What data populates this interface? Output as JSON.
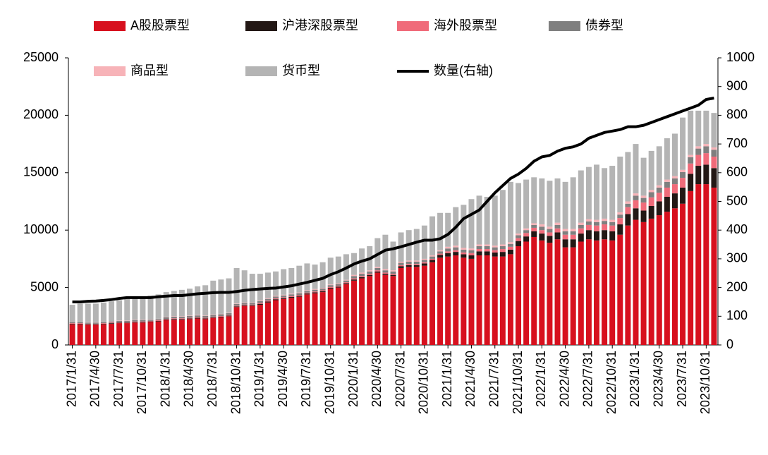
{
  "chart_data": {
    "type": "stacked_bar_line",
    "categories": [
      "2017/1/31",
      null,
      null,
      "2017/4/30",
      null,
      null,
      "2017/7/31",
      null,
      null,
      "2017/10/31",
      null,
      null,
      "2018/1/31",
      null,
      null,
      "2018/4/30",
      null,
      null,
      "2018/7/31",
      null,
      null,
      "2018/10/31",
      null,
      null,
      "2019/1/31",
      null,
      null,
      "2019/4/30",
      null,
      null,
      "2019/7/31",
      null,
      null,
      "2019/10/31",
      null,
      null,
      "2020/1/31",
      null,
      null,
      "2020/4/30",
      null,
      null,
      "2020/7/31",
      null,
      null,
      "2020/10/31",
      null,
      null,
      "2021/1/31",
      null,
      null,
      "2021/4/30",
      null,
      null,
      "2021/7/31",
      null,
      null,
      "2021/10/31",
      null,
      null,
      "2022/1/31",
      null,
      null,
      "2022/4/30",
      null,
      null,
      "2022/7/31",
      null,
      null,
      "2022/10/31",
      null,
      null,
      "2023/1/31",
      null,
      null,
      "2023/4/30",
      null,
      null,
      "2023/7/31",
      null,
      null,
      "2023/10/31",
      null
    ],
    "series": [
      {
        "name": "A股股票型",
        "color": "#d7101e",
        "values": [
          1800,
          1800,
          1750,
          1750,
          1800,
          1850,
          1900,
          1900,
          1950,
          1950,
          2000,
          2050,
          2150,
          2200,
          2200,
          2250,
          2300,
          2250,
          2350,
          2400,
          2500,
          3300,
          3400,
          3400,
          3500,
          3700,
          3900,
          4000,
          4100,
          4200,
          4400,
          4500,
          4600,
          4900,
          5000,
          5300,
          5600,
          5800,
          6000,
          6300,
          6100,
          6000,
          6700,
          6800,
          6800,
          6900,
          7200,
          7600,
          7700,
          7800,
          7600,
          7500,
          7800,
          7800,
          7700,
          7700,
          7900,
          8600,
          9000,
          9400,
          9100,
          8900,
          9200,
          8500,
          8500,
          9000,
          9200,
          9100,
          9200,
          9100,
          9600,
          10400,
          10900,
          10700,
          11000,
          11300,
          11600,
          11900,
          12300,
          13400,
          14000,
          14000,
          13700
        ]
      },
      {
        "name": "沪港深股票型",
        "color": "#231815",
        "values": [
          50,
          50,
          50,
          50,
          50,
          50,
          50,
          50,
          50,
          50,
          50,
          50,
          60,
          60,
          60,
          60,
          60,
          60,
          60,
          60,
          60,
          60,
          60,
          60,
          80,
          80,
          80,
          80,
          80,
          80,
          80,
          80,
          80,
          80,
          80,
          80,
          100,
          100,
          100,
          100,
          100,
          100,
          150,
          150,
          150,
          200,
          200,
          250,
          300,
          300,
          300,
          300,
          350,
          350,
          350,
          400,
          400,
          450,
          450,
          500,
          600,
          600,
          600,
          700,
          700,
          700,
          800,
          800,
          800,
          800,
          900,
          1000,
          1000,
          1000,
          1100,
          1200,
          1300,
          1300,
          1400,
          1500,
          1600,
          1700,
          1700
        ]
      },
      {
        "name": "海外股票型",
        "color": "#f06b7a",
        "values": [
          50,
          50,
          50,
          50,
          50,
          50,
          50,
          50,
          50,
          50,
          50,
          50,
          60,
          60,
          60,
          60,
          60,
          60,
          60,
          60,
          60,
          60,
          60,
          60,
          80,
          80,
          80,
          80,
          80,
          80,
          80,
          80,
          80,
          80,
          80,
          80,
          100,
          100,
          100,
          100,
          100,
          100,
          100,
          100,
          100,
          100,
          100,
          100,
          150,
          150,
          150,
          200,
          200,
          200,
          200,
          250,
          250,
          250,
          300,
          300,
          300,
          300,
          350,
          400,
          400,
          450,
          450,
          500,
          500,
          500,
          550,
          600,
          700,
          700,
          750,
          750,
          800,
          800,
          850,
          900,
          950,
          1000,
          1000
        ]
      },
      {
        "name": "债券型",
        "color": "#7f7f7f",
        "values": [
          100,
          100,
          100,
          100,
          100,
          100,
          100,
          100,
          100,
          100,
          100,
          100,
          150,
          150,
          150,
          150,
          150,
          150,
          150,
          150,
          150,
          150,
          150,
          150,
          150,
          150,
          150,
          150,
          150,
          150,
          150,
          150,
          150,
          150,
          150,
          150,
          200,
          200,
          200,
          200,
          200,
          200,
          200,
          200,
          200,
          200,
          200,
          200,
          250,
          250,
          250,
          250,
          250,
          250,
          250,
          250,
          250,
          250,
          250,
          250,
          300,
          300,
          300,
          300,
          300,
          300,
          300,
          300,
          300,
          300,
          300,
          300,
          400,
          400,
          450,
          450,
          500,
          500,
          500,
          550,
          550,
          600,
          600
        ]
      },
      {
        "name": "商品型",
        "color": "#f7b3b8",
        "values": [
          30,
          30,
          30,
          30,
          30,
          30,
          30,
          30,
          30,
          30,
          30,
          30,
          40,
          40,
          40,
          40,
          40,
          40,
          40,
          40,
          40,
          40,
          40,
          40,
          60,
          60,
          60,
          60,
          60,
          60,
          60,
          60,
          60,
          60,
          60,
          60,
          100,
          100,
          100,
          100,
          100,
          100,
          100,
          100,
          100,
          100,
          100,
          100,
          150,
          150,
          150,
          150,
          150,
          150,
          150,
          150,
          150,
          150,
          150,
          150,
          200,
          200,
          200,
          200,
          200,
          200,
          200,
          200,
          200,
          200,
          200,
          200,
          200,
          200,
          200,
          200,
          200,
          200,
          200,
          200,
          200,
          200,
          200
        ]
      },
      {
        "name": "货币型",
        "color": "#b4b4b4",
        "values": [
          1470,
          1570,
          1620,
          1620,
          1670,
          1720,
          1770,
          1870,
          1920,
          2020,
          2070,
          2120,
          2140,
          2190,
          2290,
          2340,
          2490,
          2640,
          2940,
          2990,
          2990,
          3090,
          2790,
          2490,
          2330,
          2230,
          2130,
          2230,
          2230,
          2330,
          2330,
          2130,
          2230,
          2330,
          2330,
          2230,
          1900,
          2100,
          2100,
          2500,
          3000,
          2500,
          2550,
          2650,
          2750,
          2900,
          3400,
          3250,
          2950,
          3350,
          3750,
          4300,
          4250,
          4150,
          4350,
          4750,
          5250,
          4400,
          4250,
          4000,
          4000,
          4000,
          3850,
          4100,
          4500,
          4550,
          4550,
          4800,
          4400,
          4700,
          4850,
          4300,
          4300,
          3300,
          3400,
          3400,
          3600,
          3700,
          4550,
          3850,
          3100,
          2900,
          3000
        ]
      },
      {
        "name": "数量(右轴)",
        "color": "#000000",
        "axis": "y2",
        "values": [
          150,
          150,
          152,
          153,
          155,
          158,
          162,
          165,
          165,
          165,
          165,
          168,
          170,
          172,
          172,
          175,
          178,
          180,
          182,
          183,
          183,
          186,
          190,
          193,
          195,
          197,
          198,
          202,
          206,
          212,
          218,
          225,
          232,
          245,
          255,
          268,
          282,
          292,
          300,
          315,
          330,
          335,
          342,
          350,
          358,
          365,
          365,
          370,
          385,
          410,
          440,
          455,
          470,
          500,
          530,
          555,
          580,
          595,
          615,
          640,
          655,
          660,
          675,
          685,
          690,
          700,
          720,
          730,
          740,
          745,
          750,
          760,
          760,
          765,
          775,
          785,
          795,
          805,
          815,
          825,
          835,
          855,
          860
        ]
      }
    ],
    "ylim": [
      0,
      25000
    ],
    "yticks": [
      0,
      5000,
      10000,
      15000,
      20000,
      25000
    ],
    "y2lim": [
      0,
      1000
    ],
    "y2ticks": [
      0,
      100,
      200,
      300,
      400,
      500,
      600,
      700,
      800,
      900,
      1000
    ],
    "legend": "top"
  }
}
